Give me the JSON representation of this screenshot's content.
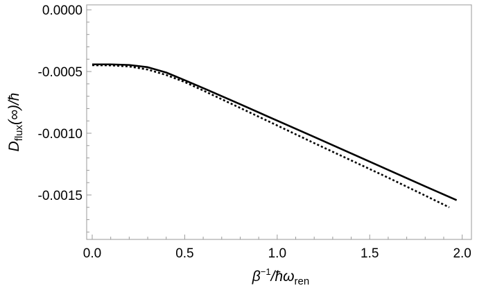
{
  "chart_data": {
    "type": "line",
    "title": "",
    "xlabel": {
      "beta": "β",
      "power": "−1",
      "rest": "/ħω",
      "sub": "ren"
    },
    "ylabel": {
      "D": "D",
      "sub": "flux",
      "rest": "(∞)/ħ"
    },
    "xlim": [
      -0.03,
      2.05
    ],
    "ylim": [
      -0.00186,
      4e-05
    ],
    "x_ticks": [
      {
        "value": 0.0,
        "label": "0.0"
      },
      {
        "value": 0.5,
        "label": "0.5"
      },
      {
        "value": 1.0,
        "label": "1.0"
      },
      {
        "value": 1.5,
        "label": "1.5"
      },
      {
        "value": 2.0,
        "label": "2.0"
      }
    ],
    "y_ticks": [
      {
        "value": 0.0,
        "label": "0.0000"
      },
      {
        "value": -0.0005,
        "label": "-0.0005"
      },
      {
        "value": -0.001,
        "label": "-0.0010"
      },
      {
        "value": -0.0015,
        "label": "-0.0015"
      }
    ],
    "grid": false,
    "series": [
      {
        "style": "solid",
        "color": "#000000",
        "x": [
          0.0,
          0.1,
          0.2,
          0.3,
          0.4,
          0.5,
          0.6,
          0.8,
          1.0,
          1.2,
          1.4,
          1.6,
          1.8,
          1.97
        ],
        "y": [
          -0.000442,
          -0.000442,
          -0.000447,
          -0.000465,
          -0.000508,
          -0.00057,
          -0.000634,
          -0.000765,
          -0.000898,
          -0.00103,
          -0.001163,
          -0.001297,
          -0.00143,
          -0.001542
        ]
      },
      {
        "style": "dotted",
        "color": "#000000",
        "x": [
          0.0,
          0.1,
          0.2,
          0.3,
          0.4,
          0.5,
          0.6,
          0.8,
          1.0,
          1.2,
          1.4,
          1.6,
          1.8,
          1.93
        ],
        "y": [
          -0.000449,
          -0.00045,
          -0.000459,
          -0.000484,
          -0.000528,
          -0.000585,
          -0.000654,
          -0.000795,
          -0.000937,
          -0.00108,
          -0.00122,
          -0.00136,
          -0.001505,
          -0.0016
        ]
      }
    ]
  }
}
